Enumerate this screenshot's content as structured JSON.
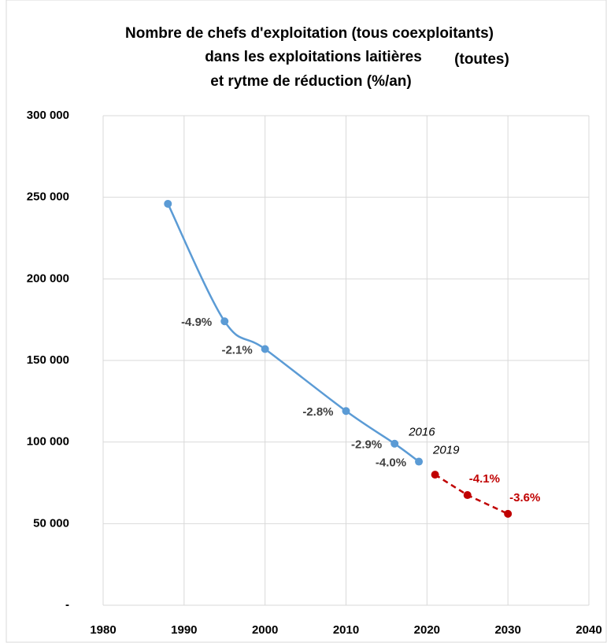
{
  "chart_data": {
    "type": "line",
    "title": [
      "Nombre de chefs d'exploitation (tous coexploitants)",
      "dans les exploitations laitières",
      "(toutes)",
      "et rytme de réduction (%/an)"
    ],
    "series": [
      {
        "color": "#5b9bd5",
        "style": "solid",
        "smooth": true,
        "x": [
          1988,
          1995,
          2000,
          2010,
          2016,
          2019
        ],
        "values": [
          246000,
          174000,
          157000,
          119000,
          99000,
          88000
        ],
        "rate_labels": [
          null,
          "-4.9%",
          "-2.1%",
          "-2.8%",
          "-2.9%",
          "-4.0%"
        ],
        "year_labels": [
          null,
          null,
          null,
          null,
          "2016",
          "2019"
        ]
      },
      {
        "color": "#c00000",
        "style": "dashed",
        "smooth": false,
        "x": [
          2021,
          2025,
          2030
        ],
        "values": [
          80000,
          67500,
          56000
        ],
        "rate_labels": [
          null,
          "-4.1%",
          "-3.6%"
        ]
      }
    ],
    "xlim": [
      1980,
      2040
    ],
    "xticks": [
      1980,
      1990,
      2000,
      2010,
      2020,
      2030,
      2040
    ],
    "ylim": [
      0,
      300000
    ],
    "yticks": [
      {
        "value": 0,
        "label": "-"
      },
      {
        "value": 50000,
        "label": "50 000"
      },
      {
        "value": 100000,
        "label": "100 000"
      },
      {
        "value": 150000,
        "label": "150 000"
      },
      {
        "value": 200000,
        "label": "200 000"
      },
      {
        "value": 250000,
        "label": "250 000"
      },
      {
        "value": 300000,
        "label": "300 000"
      }
    ],
    "grid": true
  }
}
